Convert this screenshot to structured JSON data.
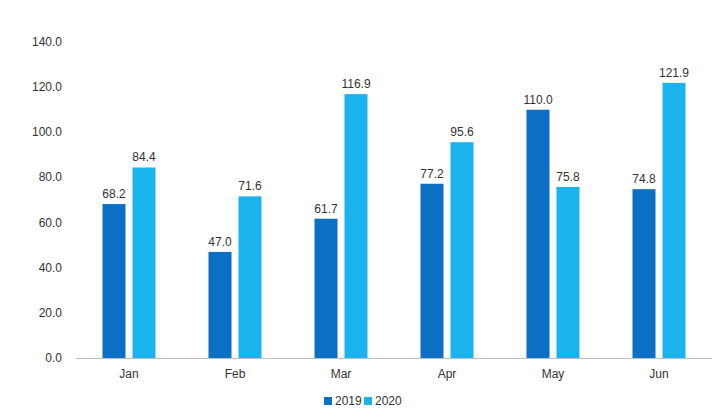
{
  "chart_data": {
    "type": "bar",
    "categories": [
      "Jan",
      "Feb",
      "Mar",
      "Apr",
      "May",
      "Jun"
    ],
    "series": [
      {
        "name": "2019",
        "color": "#0b6fc4",
        "values": [
          68.2,
          47.0,
          61.7,
          77.2,
          110.0,
          74.8
        ],
        "value_labels": [
          "68.2",
          "47.0",
          "61.7",
          "77.2",
          "110.0",
          "74.8"
        ]
      },
      {
        "name": "2020",
        "color": "#1ab3ee",
        "values": [
          84.4,
          71.6,
          116.9,
          95.6,
          75.8,
          121.9
        ],
        "value_labels": [
          "84.4",
          "71.6",
          "116.9",
          "95.6",
          "75.8",
          "121.9"
        ]
      }
    ],
    "ylim": [
      0,
      140
    ],
    "yticks": [
      {
        "value": 0,
        "label": "0.0"
      },
      {
        "value": 20,
        "label": "20.0"
      },
      {
        "value": 40,
        "label": "40.0"
      },
      {
        "value": 60,
        "label": "60.0"
      },
      {
        "value": 80,
        "label": "80.0"
      },
      {
        "value": 100,
        "label": "100.0"
      },
      {
        "value": 120,
        "label": "120.0"
      },
      {
        "value": 140,
        "label": "140.0"
      }
    ],
    "grid": false,
    "legend": "bottom",
    "data_labels": true
  }
}
